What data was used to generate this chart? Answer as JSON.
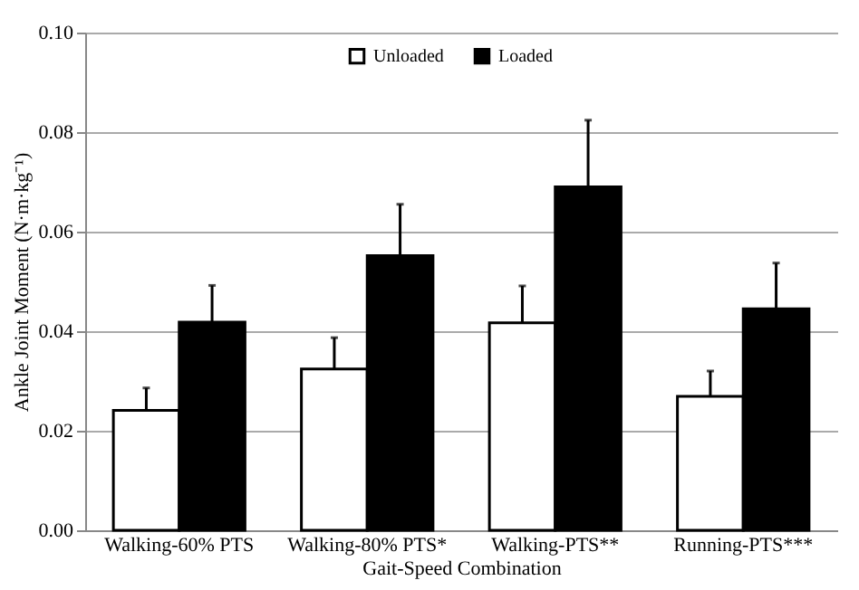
{
  "chart_data": {
    "type": "bar",
    "xlabel": "Gait-Speed Combination",
    "ylabel": "Ankle Joint Moment (N·m·kg⁻¹)",
    "categories": [
      "Walking-60% PTS",
      "Walking-80% PTS*",
      "Walking-PTS**",
      "Running-PTS***"
    ],
    "series": [
      {
        "name": "Unloaded",
        "color": "#ffffff",
        "values": [
          0.0241,
          0.0324,
          0.0417,
          0.0269
        ],
        "errors": [
          [
            0.0241,
            0.0286
          ],
          [
            0.0324,
            0.0387
          ],
          [
            0.0417,
            0.0491
          ],
          [
            0.0269,
            0.032
          ]
        ]
      },
      {
        "name": "Loaded",
        "color": "#000000",
        "values": [
          0.0418,
          0.0552,
          0.069,
          0.0445
        ],
        "errors": [
          [
            0.0418,
            0.0492
          ],
          [
            0.0552,
            0.0655
          ],
          [
            0.069,
            0.0824
          ],
          [
            0.0445,
            0.0537
          ]
        ]
      }
    ],
    "ylim": [
      0,
      0.1
    ],
    "yticks": [
      {
        "value": 0,
        "label": "0.00"
      },
      {
        "value": 0.02,
        "label": "0.02"
      },
      {
        "value": 0.04,
        "label": "0.04"
      },
      {
        "value": 0.06,
        "label": "0.06"
      },
      {
        "value": 0.08,
        "label": "0.08"
      },
      {
        "value": 0.1,
        "label": "0.10"
      }
    ],
    "grid": "y",
    "legend": "top left"
  }
}
